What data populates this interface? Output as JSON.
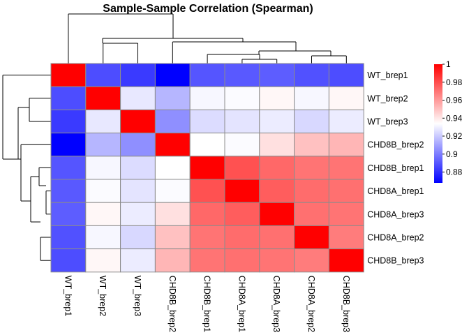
{
  "chart_data": {
    "type": "heatmap",
    "title": "Sample-Sample Correlation (Spearman)",
    "row_labels": [
      "WT_brep1",
      "WT_brep2",
      "WT_brep3",
      "CHD8B_brep2",
      "CHD8B_brep1",
      "CHD8A_brep1",
      "CHD8A_brep3",
      "CHD8A_brep2",
      "CHD8B_brep3"
    ],
    "col_labels": [
      "WT_brep1",
      "WT_brep2",
      "WT_brep3",
      "CHD8B_brep2",
      "CHD8B_brep1",
      "CHD8A_brep1",
      "CHD8A_brep3",
      "CHD8A_brep2",
      "CHD8B_brep3"
    ],
    "values": [
      [
        1.0,
        0.888,
        0.883,
        0.868,
        0.89,
        0.891,
        0.892,
        0.889,
        0.888
      ],
      [
        0.888,
        1.0,
        0.928,
        0.915,
        0.932,
        0.933,
        0.936,
        0.932,
        0.936
      ],
      [
        0.883,
        0.928,
        1.0,
        0.905,
        0.925,
        0.927,
        0.929,
        0.924,
        0.929
      ],
      [
        0.868,
        0.915,
        0.905,
        1.0,
        0.934,
        0.933,
        0.942,
        0.95,
        0.953
      ],
      [
        0.89,
        0.932,
        0.925,
        0.934,
        1.0,
        0.979,
        0.973,
        0.97,
        0.97
      ],
      [
        0.891,
        0.933,
        0.927,
        0.933,
        0.979,
        1.0,
        0.976,
        0.972,
        0.971
      ],
      [
        0.892,
        0.936,
        0.929,
        0.942,
        0.973,
        0.976,
        1.0,
        0.971,
        0.97
      ],
      [
        0.889,
        0.932,
        0.924,
        0.95,
        0.97,
        0.972,
        0.971,
        1.0,
        0.968
      ],
      [
        0.888,
        0.936,
        0.929,
        0.953,
        0.97,
        0.971,
        0.97,
        0.968,
        1.0
      ]
    ],
    "color_scale": {
      "min": 0.868,
      "mid": 0.934,
      "max": 1.0,
      "low_color": "#0000ff",
      "mid_color": "#ffffff",
      "high_color": "#ff0000"
    },
    "legend": {
      "ticks": [
        1,
        0.98,
        0.96,
        0.94,
        0.92,
        0.9,
        0.88
      ],
      "tick_labels": [
        "1",
        "0.98",
        "0.96",
        "0.94",
        "0.92",
        "0.9",
        "0.88"
      ],
      "placement": "right"
    },
    "dendrogram": {
      "linkage_order": "rows and columns clustered; WT_brep1 is the outgroup, then WT_brep2/WT_brep3, then CHD8B_brep2, then CHD8 group"
    }
  }
}
